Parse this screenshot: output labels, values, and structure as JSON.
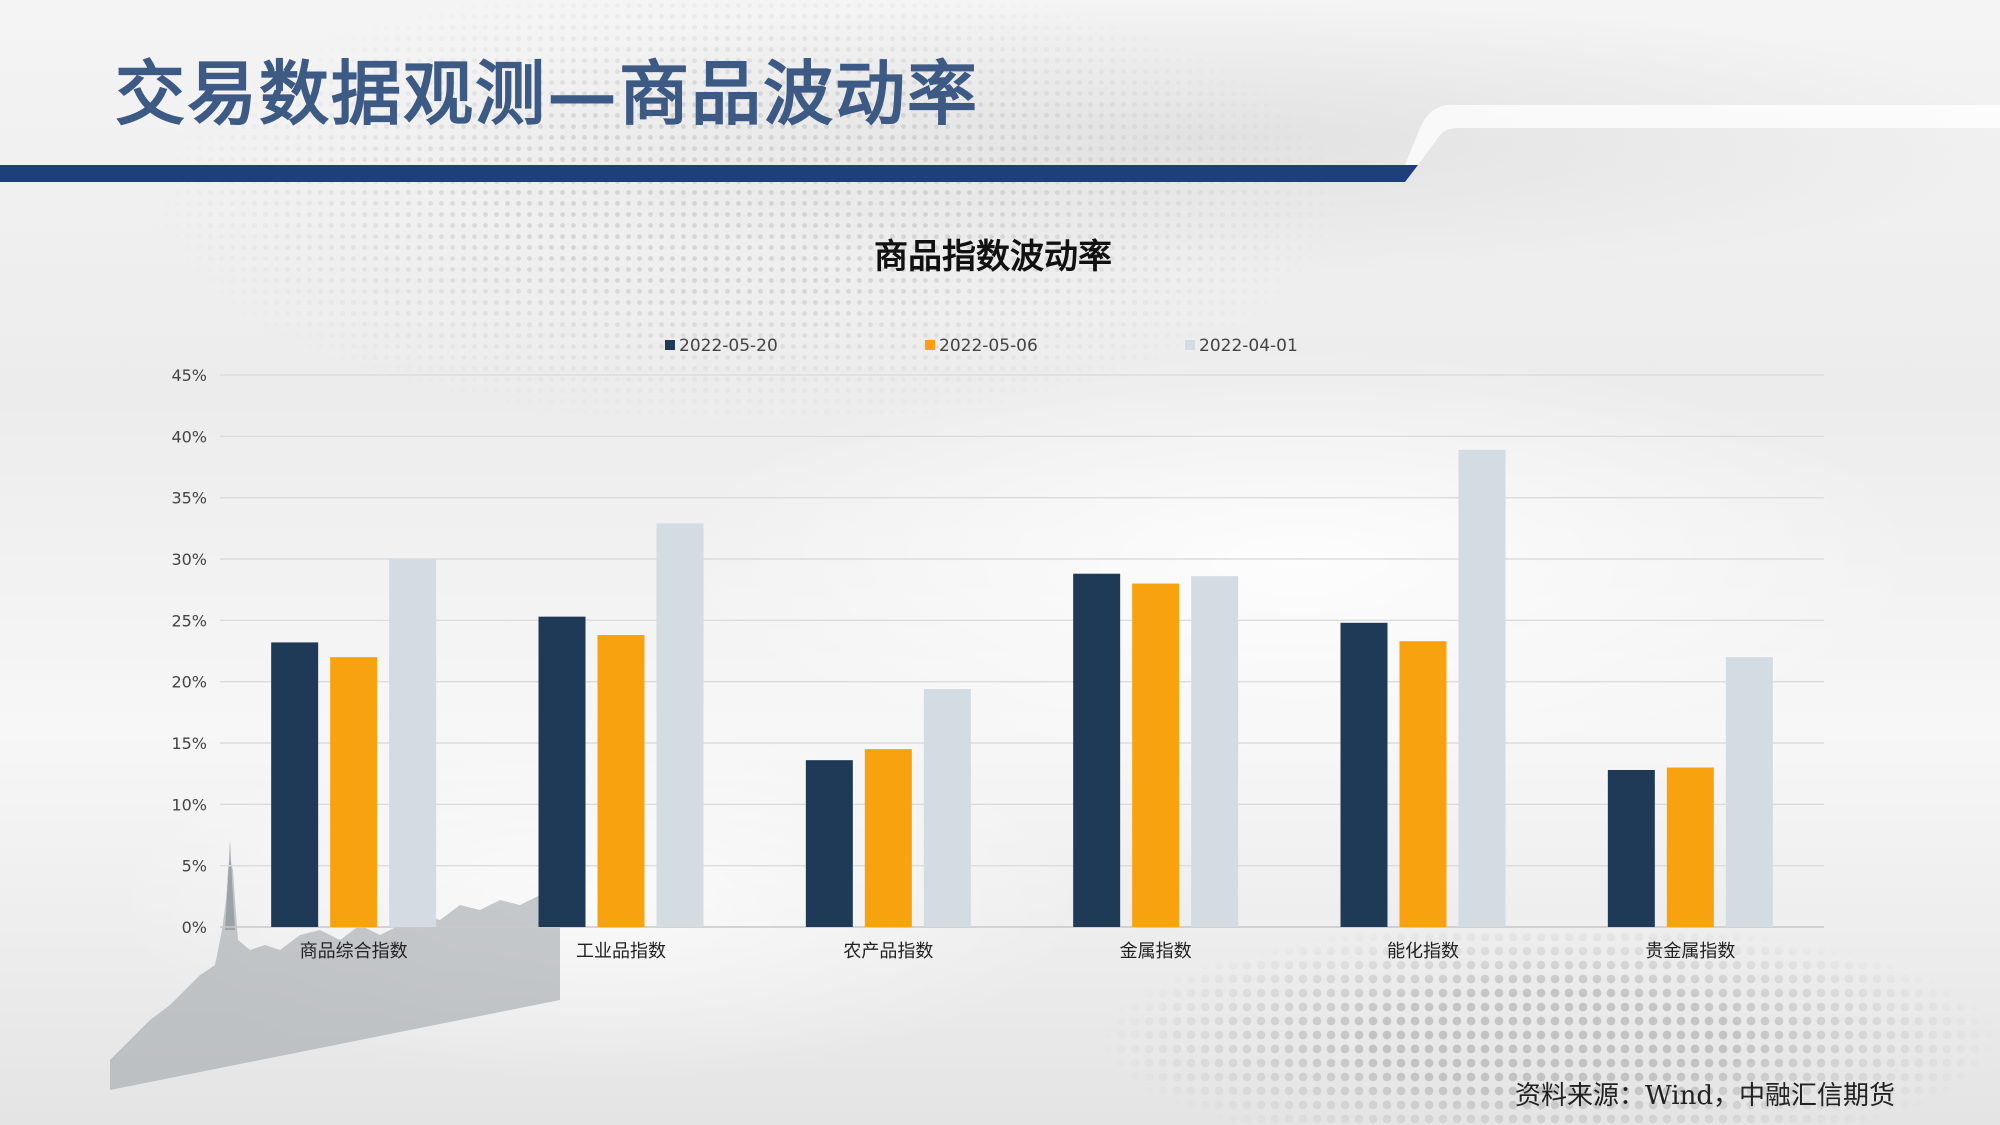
{
  "slide": {
    "title": "交易数据观测—商品波动率",
    "source": "资料来源：Wind，中融汇信期货",
    "brand_color": "#1f3f7a"
  },
  "chart_data": {
    "type": "bar",
    "title": "商品指数波动率",
    "xlabel": "",
    "ylabel": "",
    "categories": [
      "商品综合指数",
      "工业品指数",
      "农产品指数",
      "金属指数",
      "能化指数",
      "贵金属指数"
    ],
    "series": [
      {
        "name": "2022-05-20",
        "color": "#1f3a57",
        "values": [
          23.2,
          25.3,
          13.6,
          28.8,
          24.8,
          12.8
        ]
      },
      {
        "name": "2022-05-06",
        "color": "#f9a20f",
        "values": [
          22.0,
          23.8,
          14.5,
          28.0,
          23.3,
          13.0
        ]
      },
      {
        "name": "2022-04-01",
        "color": "#d3dbe3",
        "values": [
          30.0,
          32.9,
          19.4,
          28.6,
          38.9,
          22.0
        ]
      }
    ],
    "ylim": [
      0,
      45
    ],
    "yticks": [
      0,
      5,
      10,
      15,
      20,
      25,
      30,
      35,
      40,
      45
    ],
    "ytick_labels": [
      "0%",
      "5%",
      "10%",
      "15%",
      "20%",
      "25%",
      "30%",
      "35%",
      "40%",
      "45%"
    ],
    "grid": true,
    "legend_position": "top-center"
  }
}
